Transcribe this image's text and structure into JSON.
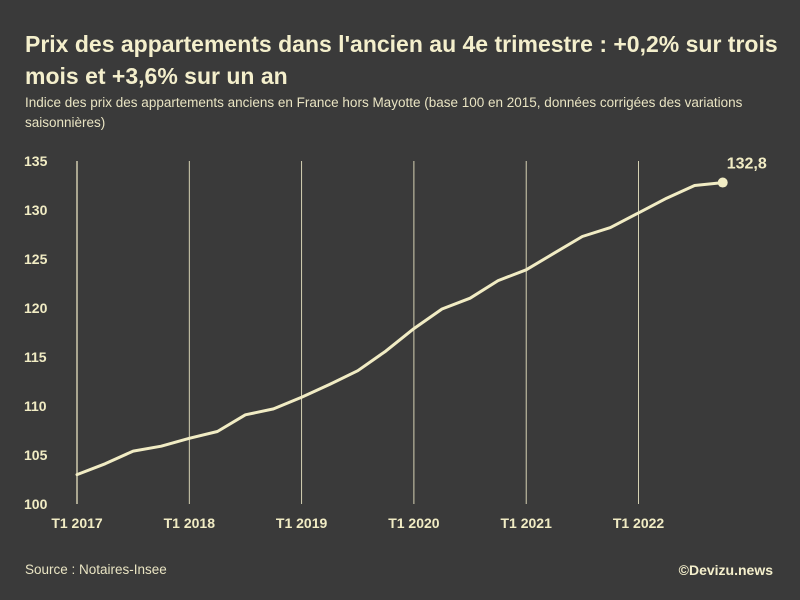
{
  "chart_data": {
    "type": "line",
    "title": "Prix des appartements dans l'ancien au 4e trimestre : +0,2% sur trois mois et +3,6% sur un an",
    "subtitle": "Indice des prix des appartements anciens en France hors Mayotte (base 100 en 2015, données corrigées des variations saisonnières)",
    "xlabel": "",
    "ylabel": "",
    "ylim": [
      100,
      135
    ],
    "y_ticks": [
      "100",
      "105",
      "110",
      "115",
      "120",
      "125",
      "130",
      "135"
    ],
    "x_tick_labels": [
      "T1 2017",
      "T1 2018",
      "T1 2019",
      "T1 2020",
      "T1 2021",
      "T1 2022"
    ],
    "series": [
      {
        "name": "Indice des prix des appartements anciens",
        "x": [
          "T1 2017",
          "T2 2017",
          "T3 2017",
          "T4 2017",
          "T1 2018",
          "T2 2018",
          "T3 2018",
          "T4 2018",
          "T1 2019",
          "T2 2019",
          "T3 2019",
          "T4 2019",
          "T1 2020",
          "T2 2020",
          "T3 2020",
          "T4 2020",
          "T1 2021",
          "T2 2021",
          "T3 2021",
          "T4 2021",
          "T1 2022",
          "T2 2022",
          "T3 2022",
          "T4 2022"
        ],
        "values": [
          103.0,
          104.1,
          105.4,
          105.9,
          106.7,
          107.4,
          109.1,
          109.7,
          110.9,
          112.2,
          113.6,
          115.6,
          117.9,
          119.9,
          121.0,
          122.8,
          123.9,
          125.6,
          127.3,
          128.2,
          129.7,
          131.2,
          132.5,
          132.8
        ]
      }
    ],
    "end_label": "132,8",
    "grid": "vertical lines at each T1",
    "colors": {
      "line": "#f1ecc4",
      "background": "#3a3a3a",
      "grid": "#e6e1c0"
    }
  },
  "footer": {
    "source": "Source : Notaires-Insee",
    "credit": "©Devizu.news"
  }
}
